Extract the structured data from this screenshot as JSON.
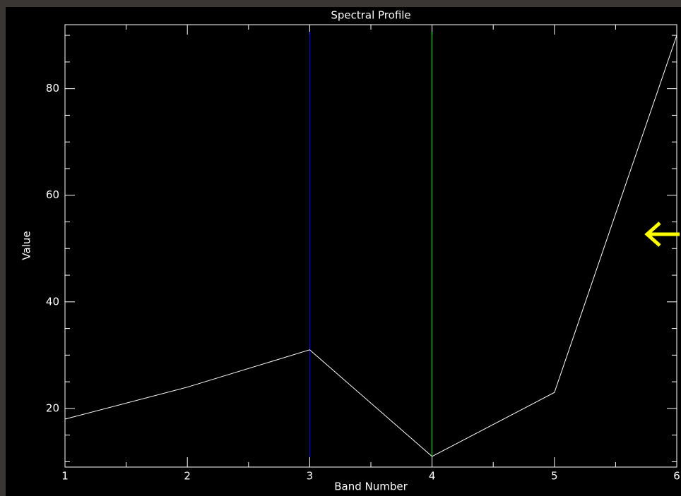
{
  "chart_data": {
    "type": "line",
    "title": "Spectral Profile",
    "x_label": "Band Number",
    "y_label": "Value",
    "x": [
      1,
      2,
      3,
      4,
      5,
      6
    ],
    "series": [
      {
        "color": "#ffffff",
        "values": [
          18,
          24,
          31,
          11,
          23,
          90
        ]
      }
    ],
    "xlim": [
      1,
      6
    ],
    "xticks": [
      1,
      2,
      3,
      4,
      5,
      6
    ],
    "xminorticks": [
      1.5,
      2.5,
      3.5,
      4.5,
      5.5
    ],
    "ylim": [
      9,
      92
    ],
    "yticks": [
      20,
      40,
      60,
      80
    ],
    "yminorticks": [
      10,
      15,
      25,
      30,
      35,
      45,
      50,
      55,
      65,
      70,
      75,
      85,
      90
    ],
    "markers": [
      {
        "x": 3,
        "color": "#0000ff"
      },
      {
        "x": 4,
        "color": "#00ff00"
      }
    ]
  }
}
